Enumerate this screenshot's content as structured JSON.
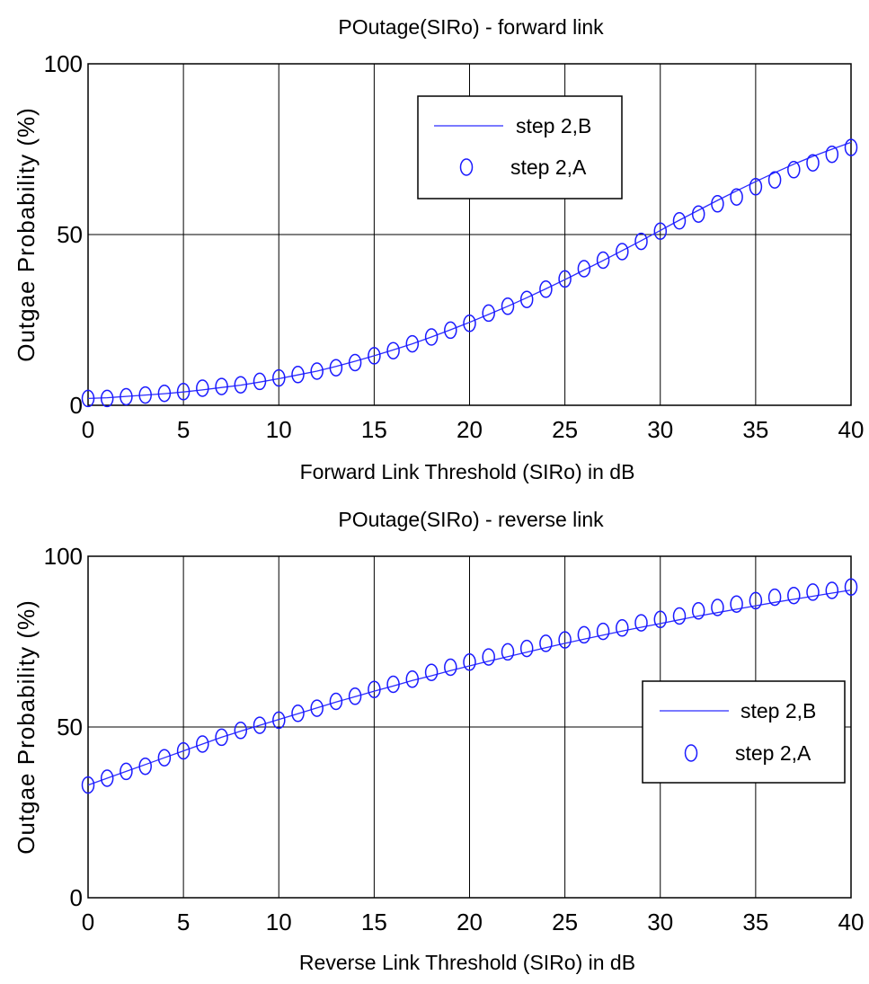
{
  "chart_data": [
    {
      "type": "line",
      "title": "POutage(SIRo) - forward link",
      "xlabel": "Forward Link Threshold (SIRo) in dB",
      "ylabel": "Outgae Probability (%)",
      "xlim": [
        0,
        40
      ],
      "ylim": [
        0,
        100
      ],
      "xticks": [
        "0",
        "5",
        "10",
        "15",
        "20",
        "25",
        "30",
        "35",
        "40"
      ],
      "yticks": [
        "0",
        "50",
        "100"
      ],
      "grid": true,
      "legend_position": "top-right",
      "x": [
        0,
        1,
        2,
        3,
        4,
        5,
        6,
        7,
        8,
        9,
        10,
        11,
        12,
        13,
        14,
        15,
        16,
        17,
        18,
        19,
        20,
        21,
        22,
        23,
        24,
        25,
        26,
        27,
        28,
        29,
        30,
        31,
        32,
        33,
        34,
        35,
        36,
        37,
        38,
        39,
        40
      ],
      "series": [
        {
          "name": "step 2,B",
          "style": "line",
          "color": "#2b2bff",
          "values": [
            2,
            2.2,
            2.6,
            3,
            3.4,
            3.9,
            4.5,
            5.2,
            5.9,
            6.8,
            7.8,
            8.9,
            10,
            11.4,
            12.9,
            14.5,
            16.2,
            18,
            20,
            22.1,
            24.3,
            26.6,
            29,
            31.5,
            34.1,
            36.8,
            39.6,
            42.4,
            45.3,
            48.2,
            51.2,
            54.2,
            57.1,
            60,
            62.8,
            65.5,
            68.1,
            70.6,
            72.9,
            75,
            77
          ]
        },
        {
          "name": "step 2,A",
          "style": "marker-o",
          "color": "#1a1aff",
          "values": [
            2,
            2,
            2.5,
            3,
            3.5,
            4,
            5,
            5.5,
            6,
            7,
            8,
            9,
            10,
            11,
            12.5,
            14.5,
            16,
            18,
            20,
            22,
            24,
            27,
            29,
            31,
            34,
            37,
            40,
            42.5,
            45,
            48,
            51,
            54,
            56,
            59,
            61,
            64,
            66,
            69,
            71,
            73.5,
            75.5
          ]
        }
      ]
    },
    {
      "type": "line",
      "title": "POutage(SIRo) - reverse link",
      "xlabel": "Reverse Link Threshold (SIRo) in dB",
      "ylabel": "Outgae Probability (%)",
      "xlim": [
        0,
        40
      ],
      "ylim": [
        0,
        100
      ],
      "xticks": [
        "0",
        "5",
        "10",
        "15",
        "20",
        "25",
        "30",
        "35",
        "40"
      ],
      "yticks": [
        "0",
        "50",
        "100"
      ],
      "grid": true,
      "legend_position": "center-right",
      "x": [
        0,
        1,
        2,
        3,
        4,
        5,
        6,
        7,
        8,
        9,
        10,
        11,
        12,
        13,
        14,
        15,
        16,
        17,
        18,
        19,
        20,
        21,
        22,
        23,
        24,
        25,
        26,
        27,
        28,
        29,
        30,
        31,
        32,
        33,
        34,
        35,
        36,
        37,
        38,
        39,
        40
      ],
      "series": [
        {
          "name": "step 2,B",
          "style": "line",
          "color": "#2b2bff",
          "values": [
            33,
            35,
            37,
            39,
            41,
            43,
            45,
            47,
            48.8,
            50.5,
            52.2,
            53.9,
            55.6,
            57.3,
            58.9,
            60.5,
            62,
            63.6,
            65,
            66.5,
            67.9,
            69.3,
            70.6,
            71.9,
            73.2,
            74.5,
            75.7,
            76.9,
            78.1,
            79.2,
            80.3,
            81.4,
            82.5,
            83.5,
            84.5,
            85.5,
            86.5,
            87.4,
            88.3,
            89.2,
            90.1
          ]
        },
        {
          "name": "step 2,A",
          "style": "marker-o",
          "color": "#1a1aff",
          "values": [
            33,
            35,
            37,
            38.5,
            41,
            43,
            45,
            47,
            49,
            50.5,
            52,
            54,
            55.5,
            57.5,
            59,
            61,
            62.5,
            64,
            66,
            67.5,
            69,
            70.5,
            72,
            73,
            74.5,
            75.5,
            77,
            78,
            79,
            80.5,
            81.5,
            82.5,
            84,
            85,
            86,
            87,
            88,
            88.5,
            89.5,
            90,
            91
          ]
        }
      ]
    }
  ]
}
